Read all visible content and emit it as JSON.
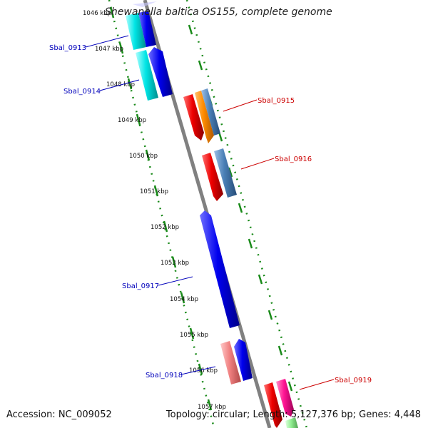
{
  "title": "Shewanella baltica OS155, complete genome",
  "accession_text": "Accession: NC_009052",
  "summary_text": "Topology: circular; Length: 5,127,376 bp; Genes: 4,448",
  "kbp_labels": [
    "1046 kbp",
    "1047 kbp",
    "1048 kbp",
    "1049 kbp",
    "1050 kbp",
    "1051 kbp",
    "1052 kbp",
    "1053 kbp",
    "1054 kbp",
    "1055 kbp",
    "1056 kbp",
    "1057 kbp"
  ],
  "gene_labels": {
    "sbal_0913": "Sbal_0913",
    "sbal_0914": "Sbal_0914",
    "sbal_0915": "Sbal_0915",
    "sbal_0916": "Sbal_0916",
    "sbal_0917": "Sbal_0917",
    "sbal_0918": "Sbal_0918",
    "sbal_0919": "Sbal_0919"
  },
  "colors": {
    "backbone": "#808080",
    "ticks": "#1a8a1a",
    "reverse_label": "#0000bb",
    "forward_label": "#cc0000",
    "blue": "#0000ee",
    "cyan": "#00e5e5",
    "red": "#ee0000",
    "orange": "#ff8c00",
    "steelblue": "#4a7fb5",
    "salmon": "#f08080",
    "pink": "#ff1493",
    "lightgreen": "#90ee90"
  }
}
